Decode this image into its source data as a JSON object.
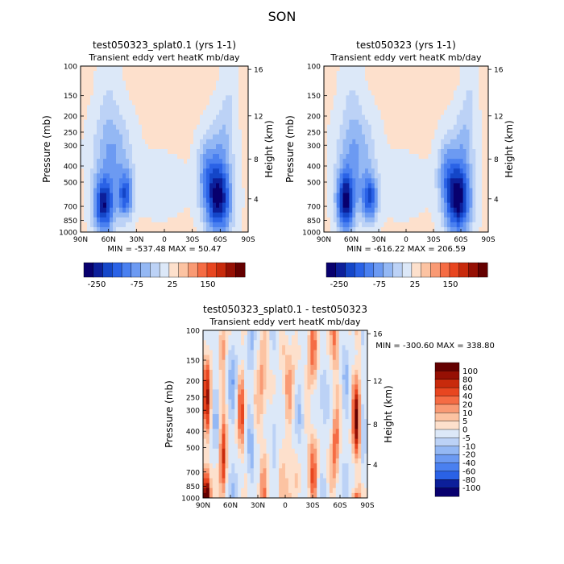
{
  "figure": {
    "title": "SON"
  },
  "colors": {
    "diverging": [
      "#08006e",
      "#0c1f9a",
      "#1446c8",
      "#2a62e6",
      "#4a80f0",
      "#6c9af2",
      "#94b8f4",
      "#bcd2f6",
      "#dce8f8",
      "#fde0cc",
      "#fcc3a2",
      "#f99a74",
      "#f56c44",
      "#e84620",
      "#c82a0c",
      "#961004",
      "#640000"
    ]
  },
  "chart_data": [
    {
      "id": "panel-a",
      "type": "heatmap",
      "title": "test050323_splat0.1 (yrs 1-1)",
      "subtitle": "Transient eddy vert heatK mb/day",
      "ylabel": "Pressure (mb)",
      "ylabel_right": "Height (km)",
      "xticks": [
        "90N",
        "60N",
        "30N",
        "0",
        "30S",
        "60S",
        "90S"
      ],
      "yticks": [
        "100",
        "150",
        "200",
        "250",
        "300",
        "400",
        "500",
        "700",
        "850",
        "1000"
      ],
      "yticks_right": [
        "16",
        "12",
        "8",
        "4"
      ],
      "stats": "MIN = -537.48   MAX = 50.47",
      "colorbar_labels": [
        "-250",
        "-75",
        "25",
        "150"
      ],
      "colorbar_levels": [
        -400,
        -300,
        -250,
        -200,
        -150,
        -100,
        -75,
        -50,
        -25,
        0,
        25,
        50,
        75,
        100,
        150,
        200,
        250
      ],
      "field": {
        "background": 0.3,
        "lobes": [
          {
            "lat": 65,
            "lev": 0.84,
            "wlat": 11,
            "wlev": 0.17,
            "amp": -11
          },
          {
            "lat": 42,
            "lev": 0.78,
            "wlat": 8,
            "wlev": 0.14,
            "amp": -8
          },
          {
            "lat": 56,
            "lev": 0.52,
            "wlat": 20,
            "wlev": 0.24,
            "amp": -4.5
          },
          {
            "lat": -58,
            "lev": 0.8,
            "wlat": 14,
            "wlev": 0.22,
            "amp": -12
          },
          {
            "lat": -45,
            "lev": 0.62,
            "wlat": 10,
            "wlev": 0.2,
            "amp": -4
          },
          {
            "lat": -62,
            "lev": 0.45,
            "wlat": 12,
            "wlev": 0.22,
            "amp": -3
          },
          {
            "lat": 5,
            "lev": 0.72,
            "wlat": 30,
            "wlev": 0.18,
            "amp": -1.2
          },
          {
            "lat": 60,
            "lev": 0.15,
            "wlat": 12,
            "wlev": 0.25,
            "amp": -1.4
          },
          {
            "lat": -70,
            "lev": 0.15,
            "wlat": 8,
            "wlev": 0.25,
            "amp": -1.4
          }
        ]
      }
    },
    {
      "id": "panel-b",
      "type": "heatmap",
      "title": "test050323 (yrs 1-1)",
      "subtitle": "Transient eddy vert heatK mb/day",
      "ylabel": "Pressure (mb)",
      "ylabel_right": "Height (km)",
      "xticks": [
        "90N",
        "60N",
        "30N",
        "0",
        "30S",
        "60S",
        "90S"
      ],
      "yticks": [
        "100",
        "150",
        "200",
        "250",
        "300",
        "400",
        "500",
        "700",
        "850",
        "1000"
      ],
      "yticks_right": [
        "16",
        "12",
        "8",
        "4"
      ],
      "stats": "MIN = -616.22   MAX = 206.59",
      "colorbar_labels": [
        "-250",
        "-75",
        "25",
        "150"
      ],
      "colorbar_levels": [
        -400,
        -300,
        -250,
        -200,
        -150,
        -100,
        -75,
        -50,
        -25,
        0,
        25,
        50,
        75,
        100,
        150,
        200,
        250
      ],
      "field": {
        "background": 0.3,
        "lobes": [
          {
            "lat": 66,
            "lev": 0.82,
            "wlat": 10,
            "wlev": 0.18,
            "amp": -12
          },
          {
            "lat": 40,
            "lev": 0.8,
            "wlat": 9,
            "wlev": 0.14,
            "amp": -8.5
          },
          {
            "lat": 55,
            "lev": 0.52,
            "wlat": 20,
            "wlev": 0.24,
            "amp": -4.5
          },
          {
            "lat": -57,
            "lev": 0.8,
            "wlat": 14,
            "wlev": 0.22,
            "amp": -12.5
          },
          {
            "lat": -44,
            "lev": 0.62,
            "wlat": 10,
            "wlev": 0.2,
            "amp": -4
          },
          {
            "lat": -63,
            "lev": 0.45,
            "wlat": 12,
            "wlev": 0.22,
            "amp": -3
          },
          {
            "lat": 5,
            "lev": 0.72,
            "wlat": 30,
            "wlev": 0.18,
            "amp": -1.2
          },
          {
            "lat": 60,
            "lev": 0.15,
            "wlat": 12,
            "wlev": 0.25,
            "amp": -1.4
          },
          {
            "lat": -70,
            "lev": 0.15,
            "wlat": 8,
            "wlev": 0.25,
            "amp": -1.4
          }
        ]
      }
    },
    {
      "id": "panel-diff",
      "type": "heatmap",
      "title": "test050323_splat0.1 - test050323",
      "subtitle": "Transient eddy vert heatK mb/day",
      "ylabel": "Pressure (mb)",
      "ylabel_right": "Height (km)",
      "xticks": [
        "90N",
        "60N",
        "30N",
        "0",
        "30S",
        "60S",
        "90S"
      ],
      "yticks": [
        "100",
        "150",
        "200",
        "250",
        "300",
        "400",
        "500",
        "700",
        "850",
        "1000"
      ],
      "yticks_right": [
        "16",
        "12",
        "8",
        "4"
      ],
      "stats": "MIN = -300.60   MAX = 338.80",
      "colorbar_labels": [
        "100",
        "80",
        "60",
        "40",
        "20",
        "10",
        "5",
        "0",
        "-5",
        "-10",
        "-20",
        "-40",
        "-60",
        "-80",
        "-100"
      ],
      "colorbar_levels": [
        -100,
        -80,
        -60,
        -40,
        -20,
        -10,
        -5,
        0,
        5,
        10,
        20,
        40,
        60,
        80,
        100
      ],
      "field": {
        "background": 0.0,
        "stripes": [
          {
            "lat": 86,
            "amp": 6,
            "w": 4,
            "bottom": true
          },
          {
            "lat": 76,
            "amp": -3,
            "w": 4
          },
          {
            "lat": 68,
            "amp": 4,
            "w": 4,
            "bottom": true
          },
          {
            "lat": 58,
            "amp": -4,
            "w": 5
          },
          {
            "lat": 48,
            "amp": 3,
            "w": 4
          },
          {
            "lat": 38,
            "amp": -4,
            "w": 4
          },
          {
            "lat": 25,
            "amp": 2,
            "w": 5
          },
          {
            "lat": 12,
            "amp": -2,
            "w": 5
          },
          {
            "lat": -4,
            "amp": 1.6,
            "w": 6
          },
          {
            "lat": -16,
            "amp": -2.5,
            "w": 5
          },
          {
            "lat": -30,
            "amp": 2.5,
            "w": 5
          },
          {
            "lat": -42,
            "amp": -3,
            "w": 5
          },
          {
            "lat": -55,
            "amp": 3,
            "w": 4
          },
          {
            "lat": -66,
            "amp": -3.5,
            "w": 4
          },
          {
            "lat": -78,
            "amp": 6,
            "w": 4,
            "bottom": true
          },
          {
            "lat": -86,
            "amp": -3,
            "w": 3
          }
        ]
      }
    }
  ]
}
